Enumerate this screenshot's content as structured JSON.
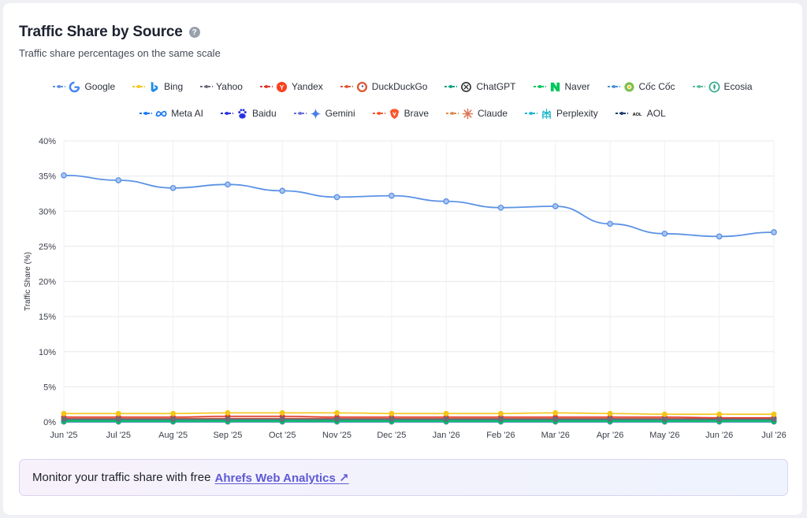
{
  "header": {
    "title": "Traffic Share by Source",
    "help_icon": "?",
    "subtitle": "Traffic share percentages on the same scale"
  },
  "cta": {
    "text": "Monitor your traffic share with free",
    "link_label": "Ahrefs Web Analytics ↗"
  },
  "chart_data": {
    "type": "line",
    "title": "Traffic Share by Source",
    "subtitle": "Traffic share percentages on the same scale",
    "xlabel": "",
    "ylabel": "Traffic Share (%)",
    "ylim": [
      0,
      40
    ],
    "yticks": [
      "0%",
      "5%",
      "10%",
      "15%",
      "20%",
      "25%",
      "30%",
      "35%",
      "40%"
    ],
    "grid": true,
    "legend_position": "top",
    "categories": [
      "Jun '25",
      "Jul '25",
      "Aug '25",
      "Sep '25",
      "Oct '25",
      "Nov '25",
      "Dec '25",
      "Jan '26",
      "Feb '26",
      "Mar '26",
      "Apr '26",
      "May '26",
      "Jun '26",
      "Jul '26"
    ],
    "series": [
      {
        "name": "Google",
        "color": "#5b92e5",
        "icon": "google-icon",
        "values": [
          35.1,
          34.4,
          33.3,
          33.8,
          32.9,
          32.0,
          32.2,
          31.4,
          30.5,
          30.7,
          28.2,
          26.8,
          26.4,
          27.0
        ]
      },
      {
        "name": "Bing",
        "color": "#f5c518",
        "icon": "bing-icon",
        "values": [
          1.2,
          1.2,
          1.2,
          1.3,
          1.3,
          1.3,
          1.2,
          1.2,
          1.2,
          1.3,
          1.2,
          1.1,
          1.1,
          1.1
        ]
      },
      {
        "name": "Yahoo",
        "color": "#6b6b7a",
        "icon": "yahoo-icon",
        "values": [
          0.4,
          0.4,
          0.4,
          0.4,
          0.4,
          0.4,
          0.4,
          0.4,
          0.4,
          0.4,
          0.4,
          0.4,
          0.4,
          0.4
        ]
      },
      {
        "name": "Yandex",
        "color": "#e0392b",
        "icon": "yandex-icon",
        "values": [
          0.7,
          0.7,
          0.7,
          0.8,
          0.8,
          0.7,
          0.7,
          0.7,
          0.7,
          0.7,
          0.7,
          0.7,
          0.6,
          0.6
        ]
      },
      {
        "name": "DuckDuckGo",
        "color": "#de5833",
        "icon": "duckduckgo-icon",
        "values": [
          0.5,
          0.5,
          0.5,
          0.5,
          0.5,
          0.5,
          0.5,
          0.5,
          0.5,
          0.5,
          0.5,
          0.5,
          0.5,
          0.5
        ]
      },
      {
        "name": "ChatGPT",
        "color": "#10a37f",
        "icon": "chatgpt-icon",
        "values": [
          0.3,
          0.3,
          0.3,
          0.3,
          0.3,
          0.3,
          0.3,
          0.3,
          0.3,
          0.3,
          0.3,
          0.3,
          0.3,
          0.3
        ]
      },
      {
        "name": "Naver",
        "color": "#03c75a",
        "icon": "naver-icon",
        "values": [
          0.1,
          0.1,
          0.1,
          0.1,
          0.1,
          0.1,
          0.1,
          0.1,
          0.1,
          0.1,
          0.1,
          0.1,
          0.1,
          0.1
        ]
      },
      {
        "name": "Cốc Cốc",
        "color": "#4a8fdb",
        "icon": "coccoc-icon",
        "values": [
          0.1,
          0.1,
          0.1,
          0.1,
          0.1,
          0.1,
          0.1,
          0.1,
          0.1,
          0.1,
          0.1,
          0.1,
          0.1,
          0.1
        ]
      },
      {
        "name": "Ecosia",
        "color": "#5bbf9a",
        "icon": "ecosia-icon",
        "values": [
          0.1,
          0.1,
          0.1,
          0.1,
          0.1,
          0.1,
          0.1,
          0.1,
          0.1,
          0.1,
          0.1,
          0.1,
          0.1,
          0.1
        ]
      },
      {
        "name": "Meta AI",
        "color": "#1877f2",
        "icon": "meta-ai-icon",
        "values": [
          0.05,
          0.05,
          0.05,
          0.05,
          0.05,
          0.05,
          0.05,
          0.05,
          0.05,
          0.05,
          0.05,
          0.05,
          0.05,
          0.05
        ]
      },
      {
        "name": "Baidu",
        "color": "#2932e1",
        "icon": "baidu-icon",
        "values": [
          0.1,
          0.1,
          0.1,
          0.1,
          0.1,
          0.1,
          0.1,
          0.1,
          0.1,
          0.1,
          0.1,
          0.1,
          0.1,
          0.1
        ]
      },
      {
        "name": "Gemini",
        "color": "#6b72d6",
        "icon": "gemini-icon",
        "values": [
          0.05,
          0.05,
          0.05,
          0.05,
          0.05,
          0.05,
          0.05,
          0.05,
          0.05,
          0.05,
          0.05,
          0.05,
          0.05,
          0.05
        ]
      },
      {
        "name": "Brave",
        "color": "#fb542b",
        "icon": "brave-icon",
        "values": [
          0.05,
          0.05,
          0.05,
          0.05,
          0.05,
          0.05,
          0.05,
          0.05,
          0.05,
          0.05,
          0.05,
          0.05,
          0.05,
          0.05
        ]
      },
      {
        "name": "Claude",
        "color": "#e08a4b",
        "icon": "claude-icon",
        "values": [
          0.02,
          0.02,
          0.02,
          0.02,
          0.02,
          0.02,
          0.02,
          0.02,
          0.02,
          0.02,
          0.02,
          0.02,
          0.02,
          0.02
        ]
      },
      {
        "name": "Perplexity",
        "color": "#20b8cd",
        "icon": "perplexity-icon",
        "values": [
          0.02,
          0.02,
          0.02,
          0.02,
          0.02,
          0.02,
          0.02,
          0.02,
          0.02,
          0.02,
          0.02,
          0.02,
          0.02,
          0.02
        ]
      },
      {
        "name": "AOL",
        "color": "#1a3d6b",
        "icon": "aol-icon",
        "values": [
          0.02,
          0.02,
          0.02,
          0.02,
          0.02,
          0.02,
          0.02,
          0.02,
          0.02,
          0.02,
          0.02,
          0.02,
          0.02,
          0.02
        ]
      }
    ]
  }
}
